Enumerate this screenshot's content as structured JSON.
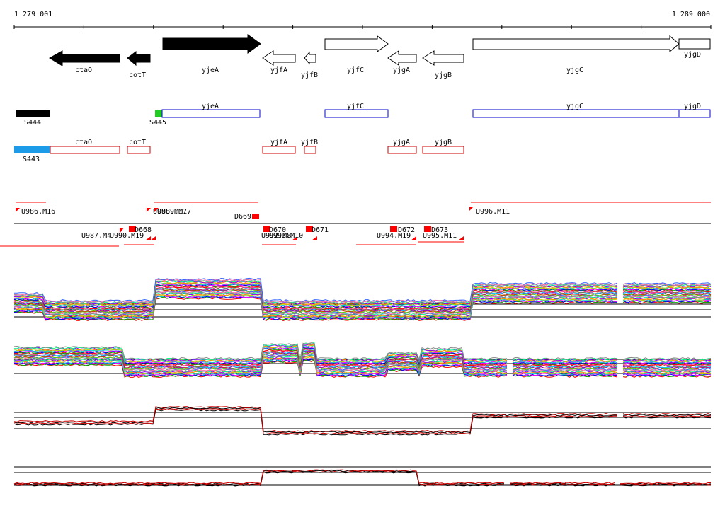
{
  "coord_start": "1 279 001",
  "coord_end": "1 289 000",
  "colors": {
    "gene_fill": "#000000",
    "operon_blue": "#0000cc",
    "operon_red": "#cc0000",
    "s443": "#1c9ce8",
    "s445": "#22cc22",
    "marker_red": "#ff0000"
  },
  "genes": [
    {
      "name": "ctaO",
      "dir": "left",
      "filled": true
    },
    {
      "name": "cotT",
      "dir": "left",
      "filled": true
    },
    {
      "name": "yjeA",
      "dir": "right",
      "filled": true
    },
    {
      "name": "yjfA",
      "dir": "left",
      "filled": false
    },
    {
      "name": "yjfB",
      "dir": "left",
      "filled": false
    },
    {
      "name": "yjfC",
      "dir": "right",
      "filled": false
    },
    {
      "name": "yjgA",
      "dir": "left",
      "filled": false
    },
    {
      "name": "yjgB",
      "dir": "left",
      "filled": false
    },
    {
      "name": "yjgC",
      "dir": "right",
      "filled": false
    },
    {
      "name": "yjgD",
      "dir": "right",
      "filled": false
    }
  ],
  "blue_operons": [
    {
      "label": "yjeA"
    },
    {
      "label": "yjfC"
    },
    {
      "label": "yjgC"
    },
    {
      "label": "yjgD"
    }
  ],
  "red_operons": [
    {
      "label": "ctaO"
    },
    {
      "label": "cotT"
    },
    {
      "label": "yjfA"
    },
    {
      "label": "yjfB"
    },
    {
      "label": "yjgA"
    },
    {
      "label": "yjgB"
    }
  ],
  "segments": [
    {
      "label": "S444"
    },
    {
      "label": "S445"
    },
    {
      "label": "S443"
    }
  ],
  "upper_markers": [
    {
      "label": "U986.M16"
    },
    {
      "label": "U988.M17"
    },
    {
      "label": "U989.M17"
    },
    {
      "label": "D669"
    },
    {
      "label": "U996.M11"
    }
  ],
  "lower_markers": [
    {
      "label": "U987.M4"
    },
    {
      "label": "U990.M19"
    },
    {
      "label": "D668"
    },
    {
      "label": "D670"
    },
    {
      "label": "U992.M8"
    },
    {
      "label": "U993.M10"
    },
    {
      "label": "D671"
    },
    {
      "label": "U994.M19"
    },
    {
      "label": "D672"
    },
    {
      "label": "D673"
    },
    {
      "label": "U995.M11"
    }
  ]
}
